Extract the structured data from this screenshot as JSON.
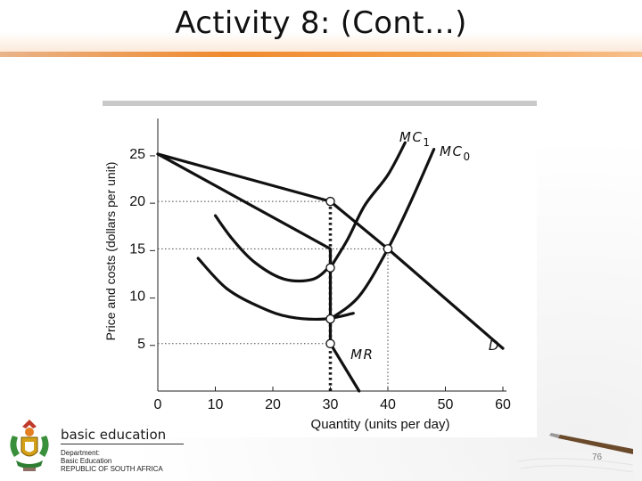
{
  "slide": {
    "title": "Activity 8: (Cont…)",
    "page_number": "76"
  },
  "logo": {
    "wordmark": "basic education",
    "line1": "Department:",
    "line2": "Basic Education",
    "line3": "REPUBLIC OF SOUTH AFRICA"
  },
  "chart_data": {
    "type": "line",
    "xlabel": "Quantity (units per day)",
    "ylabel": "Price and costs (dollars per unit)",
    "xlim": [
      0,
      60
    ],
    "ylim": [
      0,
      28
    ],
    "xticks": [
      "0",
      "10",
      "20",
      "30",
      "40",
      "50",
      "60"
    ],
    "yticks": [
      "5",
      "10",
      "15",
      "20",
      "25"
    ],
    "xtick_values": [
      0,
      10,
      20,
      30,
      40,
      50,
      60
    ],
    "ytick_values": [
      5,
      10,
      15,
      20,
      25
    ],
    "series": [
      {
        "name": "D",
        "style": "line",
        "points": [
          [
            0,
            25
          ],
          [
            30,
            20
          ],
          [
            40,
            15
          ],
          [
            60,
            4.5
          ]
        ]
      },
      {
        "name": "MR",
        "style": "line",
        "points": [
          [
            0,
            25
          ],
          [
            30,
            15
          ],
          [
            30,
            5
          ],
          [
            35,
            0
          ]
        ]
      },
      {
        "name": "",
        "style": "curve",
        "points": [
          [
            10,
            18.5
          ],
          [
            13,
            16
          ],
          [
            17,
            13.5
          ],
          [
            22,
            11.8
          ],
          [
            27,
            11.8
          ],
          [
            30,
            13.2
          ]
        ]
      },
      {
        "name": "",
        "style": "curve",
        "points": [
          [
            7,
            14
          ],
          [
            12,
            10.8
          ],
          [
            18,
            8.8
          ],
          [
            23,
            7.8
          ],
          [
            29,
            7.6
          ],
          [
            34,
            8.2
          ]
        ]
      },
      {
        "name": "MC1",
        "style": "curve",
        "points": [
          [
            30,
            13
          ],
          [
            33,
            16
          ],
          [
            36,
            19.6
          ],
          [
            40,
            22.8
          ],
          [
            43,
            26.2
          ]
        ]
      },
      {
        "name": "MC0",
        "style": "curve",
        "points": [
          [
            30,
            7.6
          ],
          [
            35,
            10
          ],
          [
            40,
            15
          ],
          [
            44,
            20
          ],
          [
            48,
            25.5
          ]
        ]
      }
    ],
    "markers": [
      [
        30,
        20
      ],
      [
        30,
        13
      ],
      [
        30,
        7.6
      ],
      [
        30,
        5
      ],
      [
        40,
        15
      ]
    ],
    "guides": {
      "horizontal": [
        [
          20,
          0,
          30
        ],
        [
          15,
          0,
          40
        ],
        [
          5,
          0,
          30
        ]
      ],
      "vertical": [
        [
          40,
          0,
          15
        ]
      ],
      "thick_dotted": [
        [
          30,
          0,
          20
        ]
      ]
    },
    "labels": [
      {
        "text": "MC",
        "sub": "1",
        "x": 42,
        "y": 26.3
      },
      {
        "text": "MC",
        "sub": "0",
        "x": 49,
        "y": 24.8
      },
      {
        "text": "D",
        "x": 57.5,
        "y": 4.3
      },
      {
        "text": "MR",
        "x": 33.5,
        "y": 3.4
      }
    ],
    "grid": false,
    "legend": "none"
  }
}
